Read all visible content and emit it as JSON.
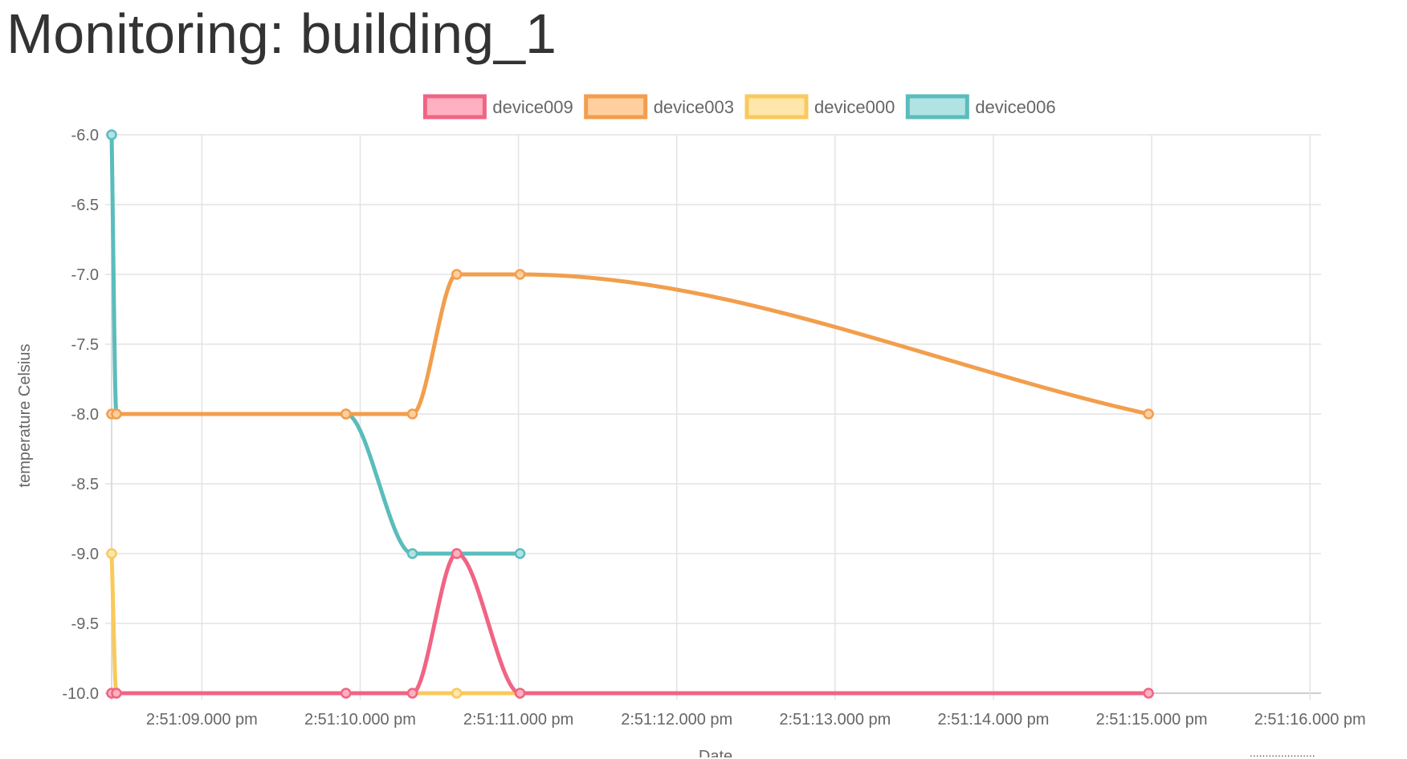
{
  "page": {
    "title": "Monitoring: building_1",
    "footer_text": "....................."
  },
  "chart_data": {
    "type": "line",
    "title": "",
    "xlabel": "Date",
    "ylabel": "temperature Celsius",
    "x_axis_type": "time",
    "x_ticks": [
      "2:51:09.000 pm",
      "2:51:10.000 pm",
      "2:51:11.000 pm",
      "2:51:12.000 pm",
      "2:51:13.000 pm",
      "2:51:14.000 pm",
      "2:51:15.000 pm",
      "2:51:16.000 pm"
    ],
    "y_ticks": [
      "-6.0",
      "-6.5",
      "-7.0",
      "-7.5",
      "-8.0",
      "-8.5",
      "-9.0",
      "-9.5",
      "-10.0"
    ],
    "xlim": [
      "2:51:08.43",
      "2:51:16.07"
    ],
    "ylim": [
      -10.0,
      -6.0
    ],
    "grid": true,
    "legend_position": "top",
    "line_tension": "smooth",
    "series": [
      {
        "name": "device009",
        "color": "#f06484",
        "fill": "#ffb1c1",
        "points": [
          {
            "t": "2:51:08.430 pm",
            "y": -10.0
          },
          {
            "t": "2:51:08.460 pm",
            "y": -10.0
          },
          {
            "t": "2:51:09.910 pm",
            "y": -10.0
          },
          {
            "t": "2:51:10.330 pm",
            "y": -10.0
          },
          {
            "t": "2:51:10.610 pm",
            "y": -9.0
          },
          {
            "t": "2:51:11.010 pm",
            "y": -10.0
          },
          {
            "t": "2:51:14.980 pm",
            "y": -10.0
          }
        ]
      },
      {
        "name": "device003",
        "color": "#f29e4c",
        "fill": "#ffcf9f",
        "points": [
          {
            "t": "2:51:08.430 pm",
            "y": -8.0
          },
          {
            "t": "2:51:08.460 pm",
            "y": -8.0
          },
          {
            "t": "2:51:09.910 pm",
            "y": -8.0
          },
          {
            "t": "2:51:10.330 pm",
            "y": -8.0
          },
          {
            "t": "2:51:10.610 pm",
            "y": -7.0
          },
          {
            "t": "2:51:11.010 pm",
            "y": -7.0
          },
          {
            "t": "2:51:14.980 pm",
            "y": -8.0
          }
        ]
      },
      {
        "name": "device000",
        "color": "#f9c95d",
        "fill": "#ffe6aa",
        "points": [
          {
            "t": "2:51:08.430 pm",
            "y": -9.0
          },
          {
            "t": "2:51:08.460 pm",
            "y": -10.0
          },
          {
            "t": "2:51:10.610 pm",
            "y": -10.0
          },
          {
            "t": "2:51:11.010 pm",
            "y": -10.0
          }
        ]
      },
      {
        "name": "device006",
        "color": "#5bbcbc",
        "fill": "#b2e3e3",
        "points": [
          {
            "t": "2:51:08.430 pm",
            "y": -6.0
          },
          {
            "t": "2:51:08.460 pm",
            "y": -8.0
          },
          {
            "t": "2:51:09.910 pm",
            "y": -8.0
          },
          {
            "t": "2:51:10.330 pm",
            "y": -9.0
          },
          {
            "t": "2:51:10.610 pm",
            "y": -9.0
          },
          {
            "t": "2:51:11.010 pm",
            "y": -9.0
          }
        ]
      }
    ]
  }
}
